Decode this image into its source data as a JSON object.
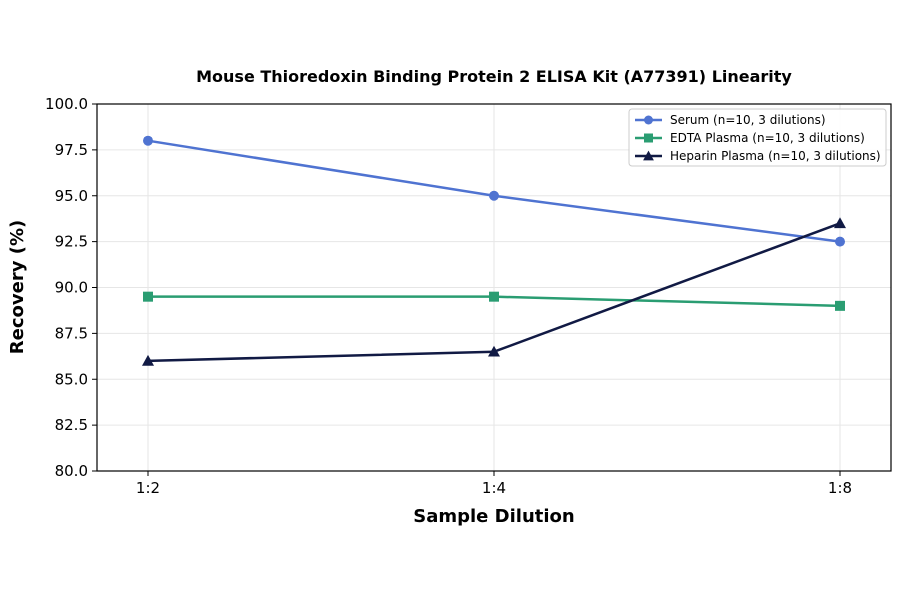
{
  "chart_data": {
    "type": "line",
    "title": "Mouse Thioredoxin Binding Protein 2 ELISA Kit (A77391) Linearity",
    "xlabel": "Sample Dilution",
    "ylabel": "Recovery (%)",
    "categories": [
      "1:2",
      "1:4",
      "1:8"
    ],
    "ylim": [
      80.0,
      100.0
    ],
    "yticks": [
      "80.0",
      "82.5",
      "85.0",
      "87.5",
      "90.0",
      "92.5",
      "95.0",
      "97.5",
      "100.0"
    ],
    "grid": true,
    "legend_position": "top-right",
    "series": [
      {
        "name": "Serum (n=10, 3 dilutions)",
        "values": [
          98.0,
          95.0,
          92.5
        ],
        "color": "#4f73d1",
        "marker": "circle"
      },
      {
        "name": "EDTA Plasma (n=10, 3 dilutions)",
        "values": [
          89.5,
          89.5,
          89.0
        ],
        "color": "#2a9d72",
        "marker": "square"
      },
      {
        "name": "Heparin Plasma (n=10, 3 dilutions)",
        "values": [
          86.0,
          86.5,
          93.5
        ],
        "color": "#111a44",
        "marker": "triangle"
      }
    ]
  }
}
